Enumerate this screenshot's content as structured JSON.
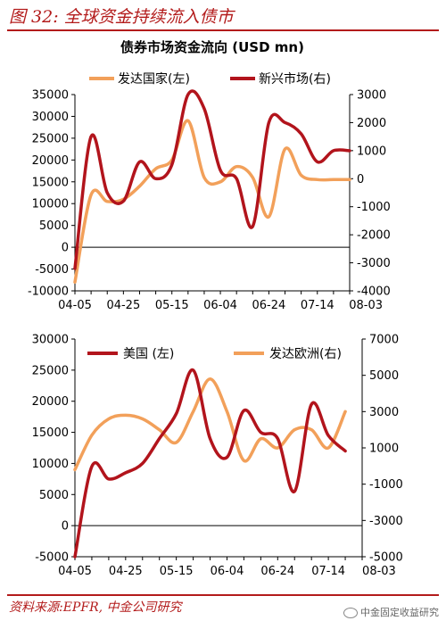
{
  "figure": {
    "title": "图 32:  全球资金持续流入债市",
    "source": "资料来源:EPFR, 中金公司研究",
    "watermark": "中金固定收益研究"
  },
  "colors": {
    "accent": "#b31b1b",
    "dark_red": "#b2141c",
    "orange": "#f2a05a"
  },
  "chart_data": [
    {
      "type": "line",
      "title": "债券市场资金流向 (USD mn)",
      "x_ticks": [
        "04-05",
        "04-25",
        "05-15",
        "06-04",
        "06-24",
        "07-14",
        "08-03"
      ],
      "x_range": [
        0,
        17
      ],
      "y_left": {
        "range": [
          -10000,
          35000
        ],
        "ticks": [
          -10000,
          -5000,
          0,
          5000,
          10000,
          15000,
          20000,
          25000,
          30000,
          35000
        ]
      },
      "y_right": {
        "range": [
          -4000,
          3000
        ],
        "ticks": [
          -4000,
          -3000,
          -2000,
          -1000,
          0,
          1000,
          2000,
          3000
        ]
      },
      "grid": false,
      "legend_position": "top",
      "series": [
        {
          "name": "发达国家(左)",
          "axis": "left",
          "color": "#f2a05a",
          "x": [
            0,
            1,
            2,
            3,
            4,
            5,
            6,
            7,
            8,
            9,
            10,
            11,
            12,
            13,
            14,
            15,
            16,
            17
          ],
          "values": [
            -8000,
            12000,
            10500,
            11000,
            14000,
            18000,
            20000,
            29000,
            16000,
            15000,
            18500,
            16000,
            7000,
            22500,
            16500,
            15500,
            15500,
            15500
          ]
        },
        {
          "name": "新兴市场(右)",
          "axis": "right",
          "color": "#b2141c",
          "x": [
            0,
            1,
            2,
            3,
            4,
            5,
            6,
            7,
            8,
            9,
            10,
            11,
            12,
            13,
            14,
            15,
            16,
            17
          ],
          "values": [
            -3200,
            1500,
            -500,
            -800,
            600,
            0,
            500,
            3000,
            2500,
            300,
            0,
            -1700,
            2000,
            2000,
            1600,
            600,
            1000,
            1000
          ]
        }
      ]
    },
    {
      "type": "line",
      "title": "",
      "x_ticks": [
        "04-05",
        "04-25",
        "05-15",
        "06-04",
        "06-24",
        "07-14",
        "08-03"
      ],
      "x_range": [
        0,
        17
      ],
      "y_left": {
        "range": [
          -5000,
          30000
        ],
        "ticks": [
          -5000,
          0,
          5000,
          10000,
          15000,
          20000,
          25000,
          30000
        ]
      },
      "y_right": {
        "range": [
          -5000,
          7000
        ],
        "ticks": [
          -5000,
          -3000,
          -1000,
          1000,
          3000,
          5000,
          7000
        ]
      },
      "grid": false,
      "legend_position": "top",
      "series": [
        {
          "name": "美国 (左)",
          "axis": "left",
          "color": "#b2141c",
          "x": [
            0,
            1,
            2,
            3,
            4,
            5,
            6,
            7,
            8,
            9,
            10,
            11,
            12,
            13,
            14,
            15,
            16
          ],
          "values": [
            -5000,
            9500,
            7500,
            8500,
            10000,
            14000,
            18000,
            25000,
            14000,
            11000,
            18500,
            15000,
            14000,
            5500,
            19500,
            14500,
            12000
          ]
        },
        {
          "name": "发达欧洲(右)",
          "axis": "right",
          "color": "#f2a05a",
          "x": [
            0,
            1,
            2,
            3,
            4,
            5,
            6,
            7,
            8,
            9,
            10,
            11,
            12,
            13,
            14,
            15,
            16
          ],
          "values": [
            -200,
            1700,
            2600,
            2800,
            2600,
            2000,
            1300,
            3000,
            4800,
            3000,
            300,
            1500,
            1000,
            2000,
            2000,
            1000,
            3000
          ]
        }
      ]
    }
  ]
}
